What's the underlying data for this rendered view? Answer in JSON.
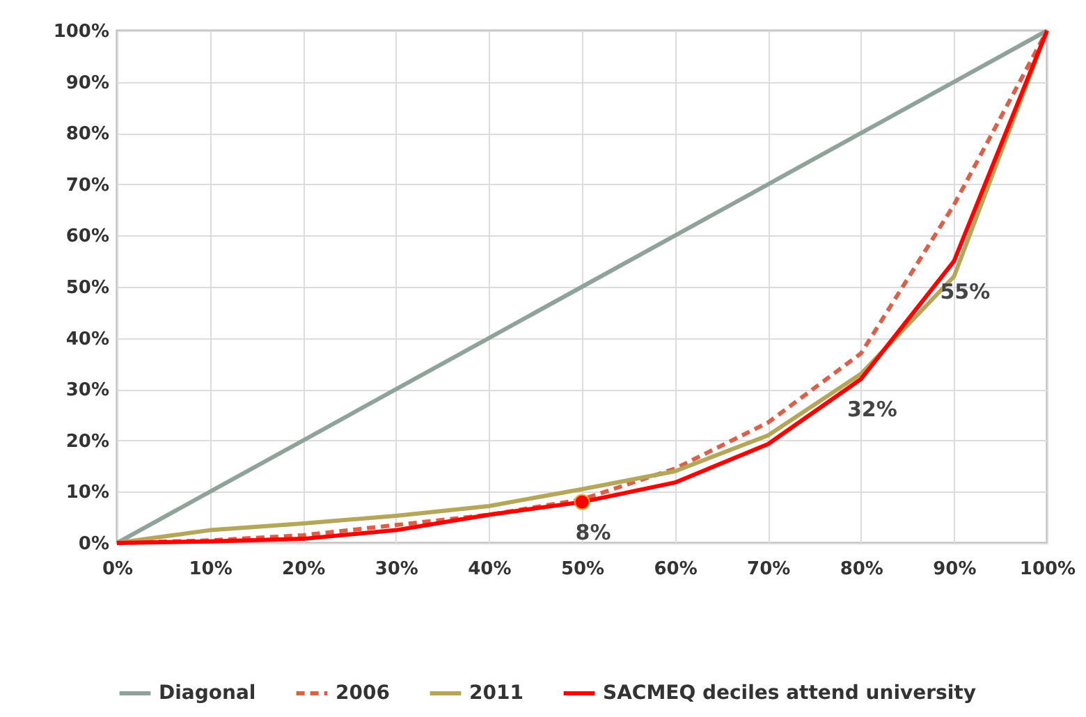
{
  "chart_data": {
    "type": "line",
    "x": [
      0,
      10,
      20,
      30,
      40,
      50,
      60,
      70,
      80,
      90,
      100
    ],
    "series": [
      {
        "name": "Diagonal",
        "color": "#8fa39a",
        "line_style": "solid",
        "values": [
          0,
          10,
          20,
          30,
          40,
          50,
          60,
          70,
          80,
          90,
          100
        ]
      },
      {
        "name": "2006",
        "color": "#d9604a",
        "line_style": "dashed",
        "values": [
          0,
          0.5,
          1.5,
          3.5,
          5.5,
          8.5,
          14.5,
          23.5,
          37,
          66,
          100
        ]
      },
      {
        "name": "2011",
        "color": "#b5a75a",
        "line_style": "solid",
        "values": [
          0,
          2.5,
          3.8,
          5.3,
          7.2,
          10.5,
          14,
          21,
          33,
          52,
          100
        ]
      },
      {
        "name": "SACMEQ deciles attend university",
        "color": "#ff0000",
        "line_style": "solid",
        "values": [
          0,
          0.3,
          0.8,
          2.5,
          5.5,
          8,
          11.8,
          19.3,
          32,
          55,
          100
        ]
      },
      {
        "type": "scatter",
        "color": "#ff0000",
        "x": [
          50
        ],
        "values": [
          8
        ],
        "marker": "circle"
      }
    ],
    "xlim": [
      0,
      100
    ],
    "ylim": [
      0,
      100
    ],
    "xticks": [
      {
        "value": 0,
        "label": "0%"
      },
      {
        "value": 10,
        "label": "10%"
      },
      {
        "value": 20,
        "label": "20%"
      },
      {
        "value": 30,
        "label": "30%"
      },
      {
        "value": 40,
        "label": "40%"
      },
      {
        "value": 50,
        "label": "50%"
      },
      {
        "value": 60,
        "label": "60%"
      },
      {
        "value": 70,
        "label": "70%"
      },
      {
        "value": 80,
        "label": "80%"
      },
      {
        "value": 90,
        "label": "90%"
      },
      {
        "value": 100,
        "label": "100%"
      }
    ],
    "yticks": [
      {
        "value": 0,
        "label": "0%"
      },
      {
        "value": 10,
        "label": "10%"
      },
      {
        "value": 20,
        "label": "20%"
      },
      {
        "value": 30,
        "label": "30%"
      },
      {
        "value": 40,
        "label": "40%"
      },
      {
        "value": 50,
        "label": "50%"
      },
      {
        "value": 60,
        "label": "60%"
      },
      {
        "value": 70,
        "label": "70%"
      },
      {
        "value": 80,
        "label": "80%"
      },
      {
        "value": 90,
        "label": "90%"
      },
      {
        "value": 100,
        "label": "100%"
      }
    ],
    "annotations": [
      {
        "text": "8%",
        "x": 50,
        "y": 8
      },
      {
        "text": "32%",
        "x": 80,
        "y": 32
      },
      {
        "text": "55%",
        "x": 90,
        "y": 55
      }
    ],
    "grid": true,
    "legend": "bottom"
  }
}
